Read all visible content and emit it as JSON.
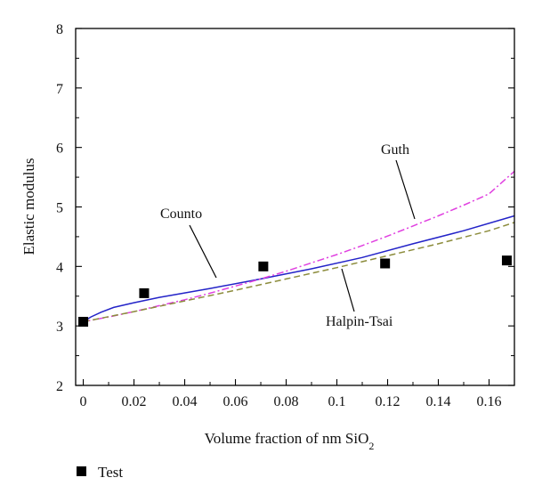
{
  "chart_data": {
    "type": "line",
    "title": "",
    "xlabel": "Volume fraction of nm SiO",
    "xlabel_subscript": "2",
    "ylabel": "Elastic modulus",
    "xlim": [
      -0.003,
      0.17
    ],
    "ylim": [
      2,
      8
    ],
    "x_ticks": [
      0,
      0.02,
      0.04,
      0.06,
      0.08,
      0.1,
      0.12,
      0.14,
      0.16
    ],
    "x_tick_labels": [
      "0",
      "0.02",
      "0.04",
      "0.06",
      "0.08",
      "0.1",
      "0.12",
      "0.14",
      "0.16"
    ],
    "y_ticks": [
      2,
      3,
      4,
      5,
      6,
      7,
      8
    ],
    "y_tick_labels": [
      "2",
      "3",
      "4",
      "5",
      "6",
      "7",
      "8"
    ],
    "grid": false,
    "series": [
      {
        "name": "Counto",
        "style": "solid",
        "color": "#2323c8",
        "x": [
          0,
          0.003,
          0.007,
          0.012,
          0.02,
          0.03,
          0.05,
          0.07,
          0.09,
          0.11,
          0.13,
          0.15,
          0.17
        ],
        "y": [
          3.07,
          3.15,
          3.23,
          3.31,
          3.39,
          3.48,
          3.63,
          3.79,
          3.96,
          4.15,
          4.38,
          4.6,
          4.85
        ]
      },
      {
        "name": "Guth",
        "style": "dashdot",
        "color": "#e040e0",
        "x": [
          0,
          0.01,
          0.02,
          0.03,
          0.04,
          0.05,
          0.06,
          0.07,
          0.08,
          0.09,
          0.1,
          0.11,
          0.12,
          0.13,
          0.14,
          0.15,
          0.16,
          0.17
        ],
        "y": [
          3.07,
          3.15,
          3.24,
          3.34,
          3.44,
          3.55,
          3.67,
          3.79,
          3.92,
          4.06,
          4.2,
          4.35,
          4.51,
          4.68,
          4.85,
          5.03,
          5.22,
          5.6
        ]
      },
      {
        "name": "Halpin-Tsai",
        "style": "dashed",
        "color": "#8c8c3c",
        "x": [
          0,
          0.02,
          0.04,
          0.06,
          0.08,
          0.1,
          0.12,
          0.14,
          0.16,
          0.17
        ],
        "y": [
          3.07,
          3.24,
          3.42,
          3.6,
          3.79,
          3.98,
          4.18,
          4.38,
          4.6,
          4.74
        ]
      },
      {
        "name": "Test",
        "style": "marker",
        "marker": "square",
        "color": "#000000",
        "x": [
          0,
          0.024,
          0.071,
          0.119,
          0.167
        ],
        "y": [
          3.07,
          3.55,
          4.0,
          4.05,
          4.1
        ]
      }
    ],
    "annotations": [
      {
        "text": "Guth",
        "series": "Guth"
      },
      {
        "text": "Counto",
        "series": "Counto"
      },
      {
        "text": "Halpin-Tsai",
        "series": "Halpin-Tsai"
      }
    ],
    "legend": {
      "placement": "bottom-left",
      "entries": [
        "Test"
      ]
    }
  }
}
